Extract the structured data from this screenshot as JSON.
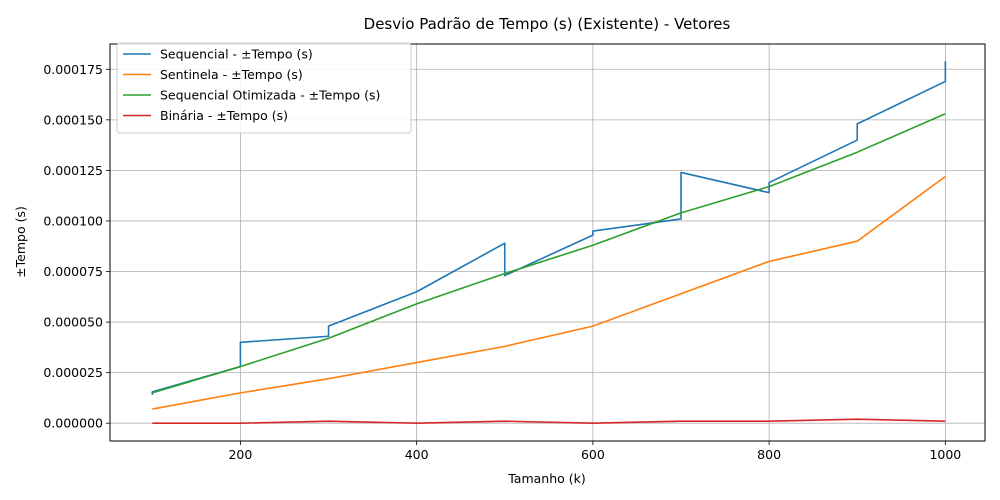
{
  "chart_data": {
    "type": "line",
    "title": "Desvio Padrão de Tempo (s) (Existente) - Vetores",
    "xlabel": "Tamanho (k)",
    "ylabel": "±Tempo (s)",
    "xlim": [
      52,
      1045
    ],
    "ylim": [
      -8.8e-06,
      0.0001875
    ],
    "xticks": [
      200,
      400,
      600,
      800,
      1000
    ],
    "xtick_labels": [
      "200",
      "400",
      "600",
      "800",
      "1000"
    ],
    "yticks": [
      0,
      2.5e-05,
      5e-05,
      7.5e-05,
      0.0001,
      0.000125,
      0.00015,
      0.000175
    ],
    "ytick_labels": [
      "0.000000",
      "0.000025",
      "0.000050",
      "0.000075",
      "0.000100",
      "0.000125",
      "0.000150",
      "0.000175"
    ],
    "grid": true,
    "legend_position": "upper-left",
    "series": [
      {
        "name": "Sequencial - ±Tempo (s)",
        "color": "#1f77b4",
        "x": [
          100,
          100,
          200,
          200,
          300,
          300,
          400,
          500,
          500,
          600,
          600,
          700,
          700,
          800,
          800,
          900,
          900,
          1000,
          1000
        ],
        "y": [
          1.4e-05,
          1.55e-05,
          2.8e-05,
          4e-05,
          4.3e-05,
          4.8e-05,
          6.5e-05,
          8.9e-05,
          7.3e-05,
          9.3e-05,
          9.5e-05,
          0.000101,
          0.000124,
          0.000114,
          0.000119,
          0.00014,
          0.000148,
          0.000169,
          0.000179
        ]
      },
      {
        "name": "Sentinela - ±Tempo (s)",
        "color": "#ff7f0e",
        "x": [
          100,
          200,
          300,
          400,
          500,
          600,
          700,
          800,
          900,
          1000
        ],
        "y": [
          7e-06,
          1.5e-05,
          2.2e-05,
          3e-05,
          3.8e-05,
          4.8e-05,
          6.4e-05,
          8e-05,
          9e-05,
          0.000122
        ]
      },
      {
        "name": "Sequencial Otimizada - ±Tempo (s)",
        "color": "#2ca02c",
        "x": [
          100,
          200,
          300,
          400,
          500,
          600,
          700,
          800,
          900,
          1000
        ],
        "y": [
          1.5e-05,
          2.8e-05,
          4.2e-05,
          5.9e-05,
          7.4e-05,
          8.8e-05,
          0.000104,
          0.000117,
          0.000134,
          0.000153
        ]
      },
      {
        "name": "Binária - ±Tempo (s)",
        "color": "#d62728",
        "x": [
          100,
          200,
          300,
          400,
          500,
          600,
          700,
          800,
          900,
          1000
        ],
        "y": [
          0.0,
          0.0,
          1e-06,
          0.0,
          1e-06,
          0.0,
          1e-06,
          1e-06,
          2e-06,
          1e-06
        ]
      }
    ]
  }
}
